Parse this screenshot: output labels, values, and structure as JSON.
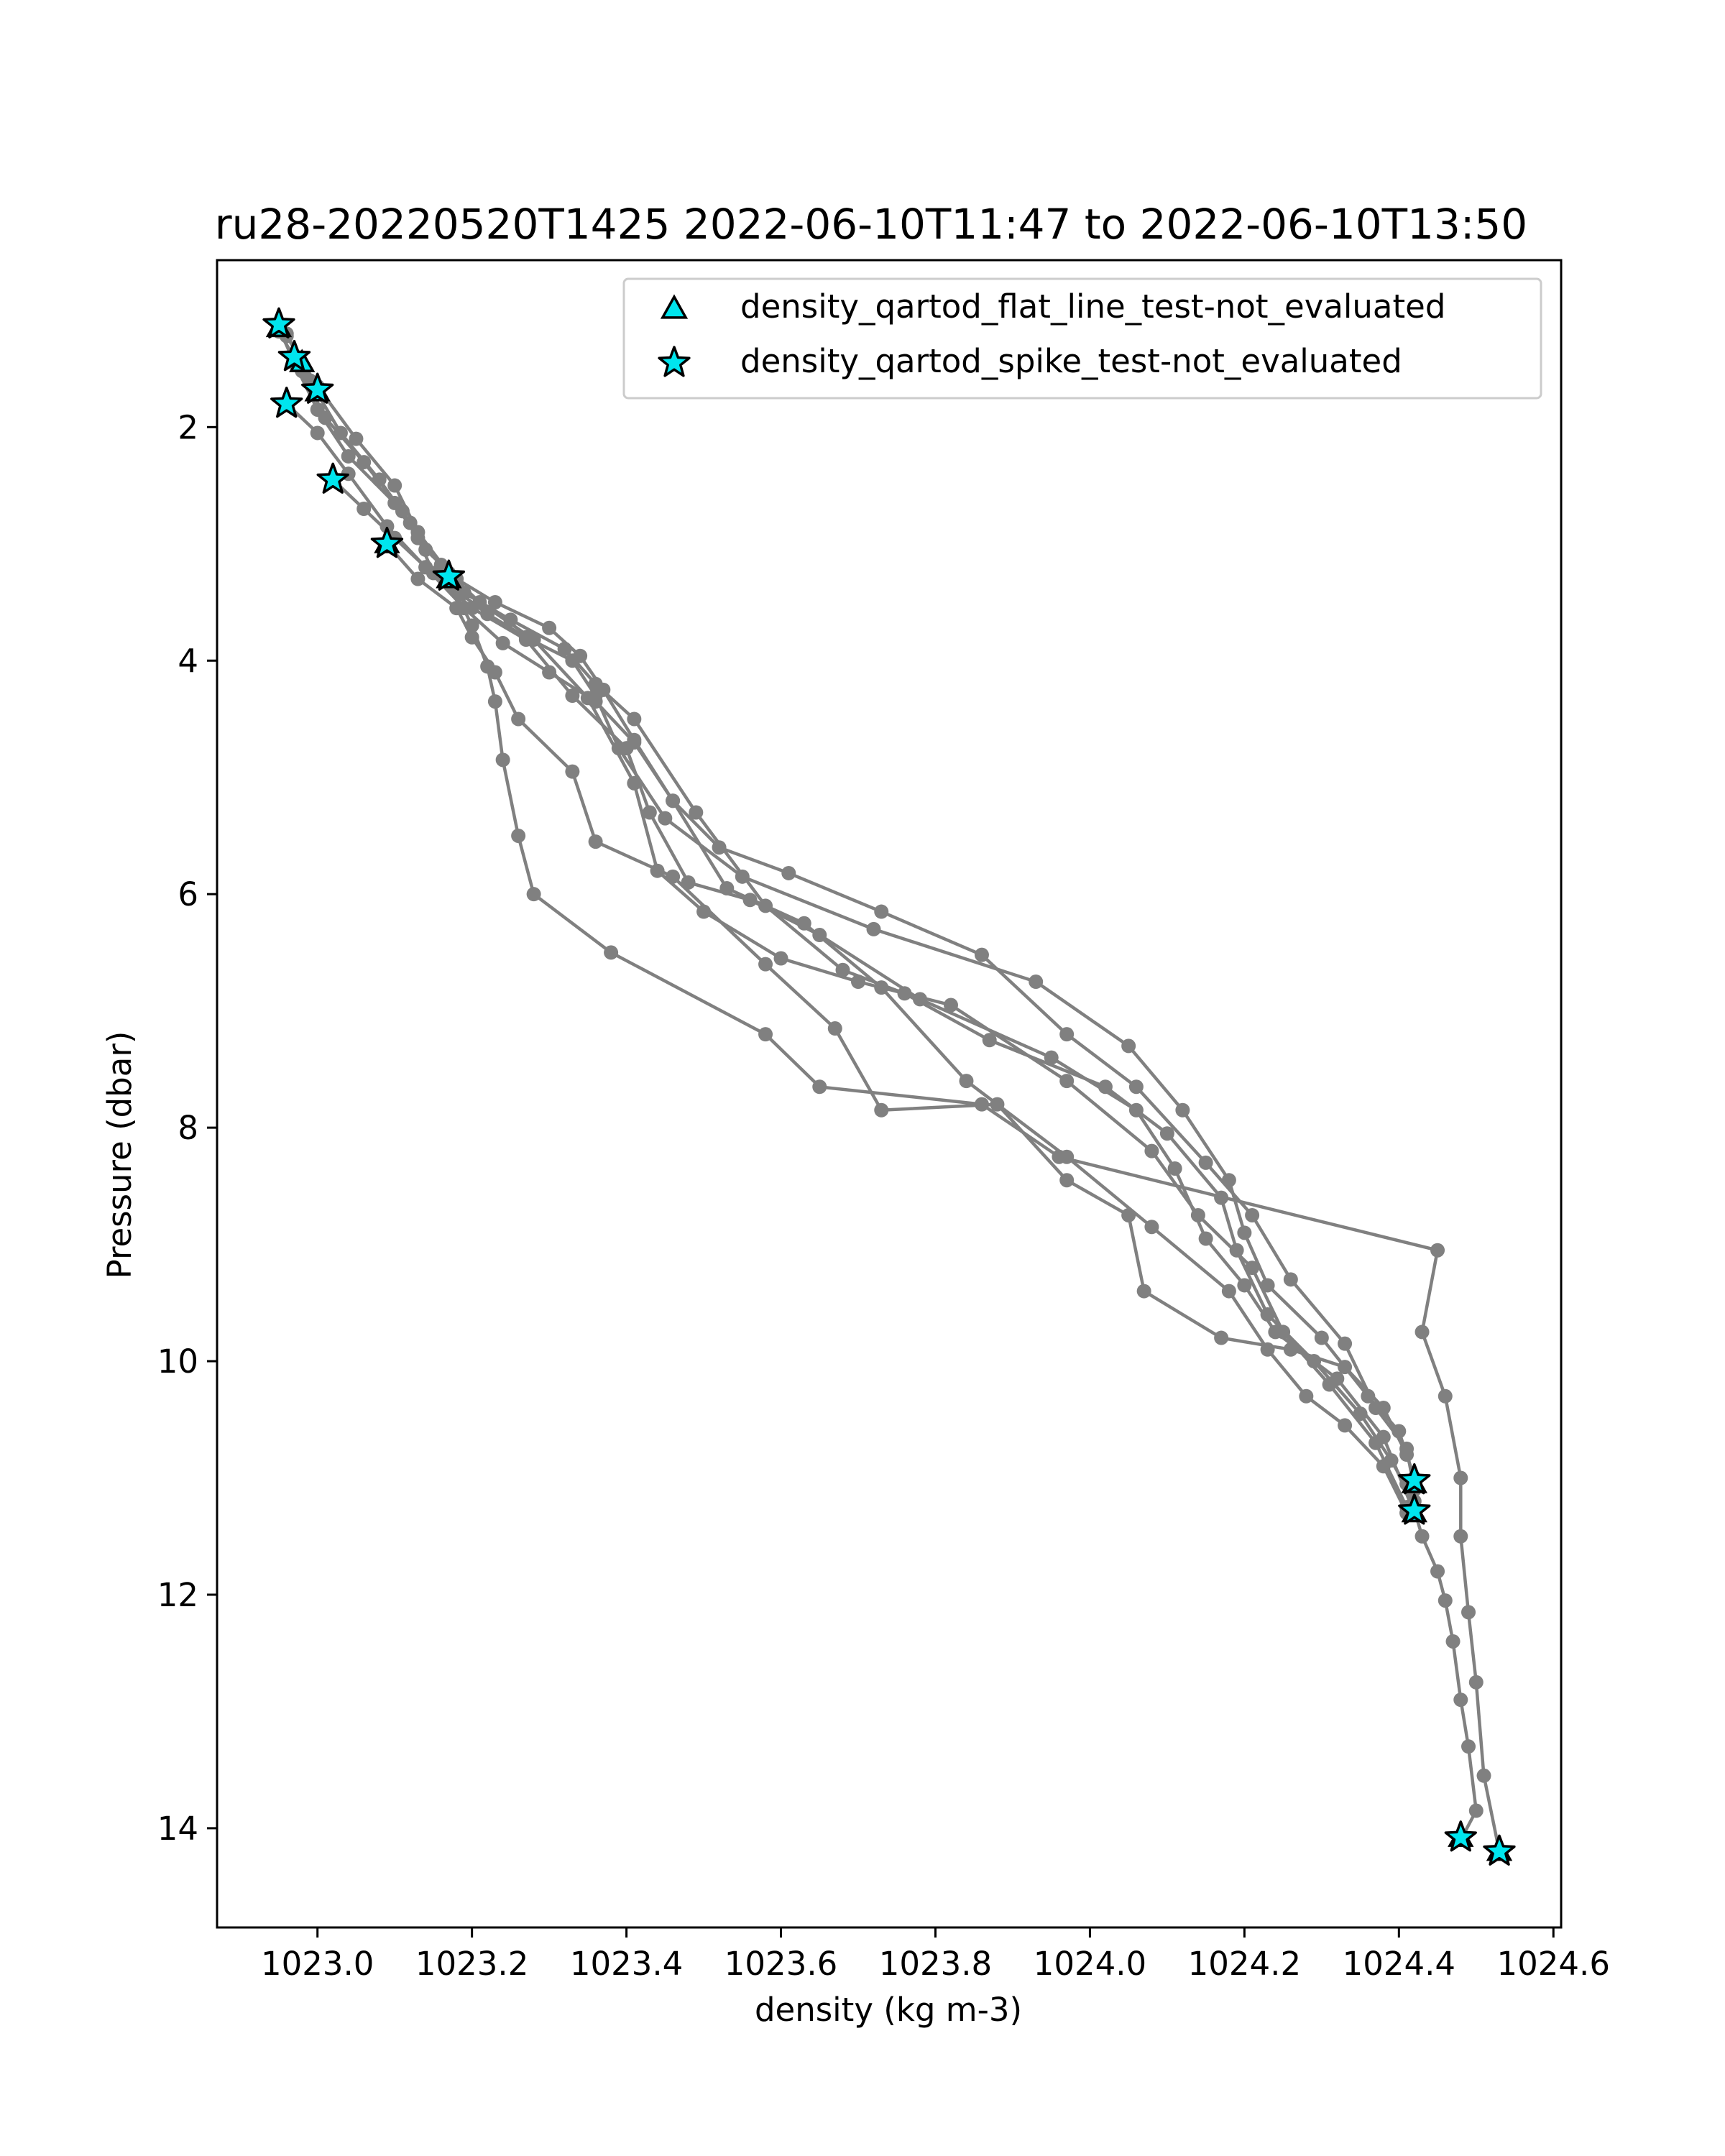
{
  "chart_data": {
    "type": "scatter",
    "title": "ru28-20220520T1425 2022-06-10T11:47 to 2022-06-10T13:50",
    "xlabel": "density (kg m-3)",
    "ylabel": "Pressure (dbar)",
    "xlim": [
      1022.87,
      1024.61
    ],
    "ylim": [
      14.85,
      0.57
    ],
    "y_inverted": true,
    "x_ticks": [
      1023.0,
      1023.2,
      1023.4,
      1023.6,
      1023.8,
      1024.0,
      1024.2,
      1024.4,
      1024.6
    ],
    "x_tick_labels": [
      "1023.0",
      "1023.2",
      "1023.4",
      "1023.6",
      "1023.8",
      "1024.0",
      "1024.2",
      "1024.4",
      "1024.6"
    ],
    "y_ticks": [
      2,
      4,
      6,
      8,
      10,
      12,
      14
    ],
    "y_tick_labels": [
      "2",
      "4",
      "6",
      "8",
      "10",
      "12",
      "14"
    ],
    "grid": false,
    "legend_position": "upper-right",
    "line_color": "#808080",
    "marker_color": "#00e5ee",
    "profiles": [
      {
        "density": [
          1022.95,
          1022.97,
          1023.0,
          1023.04,
          1023.1,
          1023.13,
          1023.15,
          1023.18,
          1023.22,
          1023.27,
          1023.33,
          1023.36,
          1023.39,
          1023.45,
          1023.55,
          1023.72,
          1023.93,
          1024.05,
          1024.12,
          1024.18,
          1024.2,
          1024.23,
          1024.3,
          1024.36,
          1024.4,
          1024.42
        ],
        "pressure": [
          1.15,
          1.45,
          1.85,
          2.25,
          2.65,
          2.95,
          3.25,
          3.4,
          3.6,
          3.8,
          4.0,
          4.3,
          4.75,
          5.35,
          5.85,
          6.3,
          6.75,
          7.3,
          7.85,
          8.45,
          8.9,
          9.35,
          9.8,
          10.3,
          10.6,
          11.0
        ]
      },
      {
        "density": [
          1022.95,
          1022.98,
          1023.01,
          1023.06,
          1023.11,
          1023.14,
          1023.18,
          1023.23,
          1023.3,
          1023.34,
          1023.37,
          1023.41,
          1023.46,
          1023.52,
          1023.61,
          1023.73,
          1023.86,
          1023.97,
          1024.06,
          1024.15,
          1024.21,
          1024.26,
          1024.33,
          1024.37,
          1024.41,
          1024.42
        ],
        "pressure": [
          1.18,
          1.52,
          1.92,
          2.3,
          2.72,
          3.05,
          3.3,
          3.5,
          3.72,
          3.96,
          4.25,
          4.68,
          5.2,
          5.6,
          5.82,
          6.15,
          6.52,
          7.2,
          7.65,
          8.3,
          8.75,
          9.3,
          9.85,
          10.4,
          10.75,
          11.1
        ]
      },
      {
        "density": [
          1022.96,
          1022.99,
          1023.03,
          1023.08,
          1023.12,
          1023.16,
          1023.19,
          1023.25,
          1023.32,
          1023.36,
          1023.41,
          1023.49,
          1023.58,
          1023.68,
          1023.76,
          1023.87,
          1024.02,
          1024.1,
          1024.17,
          1024.19,
          1024.23,
          1024.29,
          1024.35,
          1024.39,
          1024.42
        ],
        "pressure": [
          1.2,
          1.6,
          2.05,
          2.45,
          2.82,
          3.18,
          3.42,
          3.65,
          3.9,
          4.2,
          4.5,
          5.3,
          6.1,
          6.65,
          6.85,
          7.25,
          7.65,
          8.05,
          8.6,
          9.05,
          9.6,
          10.0,
          10.45,
          10.85,
          11.2
        ]
      },
      {
        "density": [
          1022.96,
          1023.0,
          1023.05,
          1023.1,
          1023.13,
          1023.17,
          1023.21,
          1023.28,
          1023.35,
          1023.41,
          1023.44,
          1023.5,
          1023.6,
          1023.7,
          1023.82,
          1023.97,
          1024.08,
          1024.14,
          1024.21,
          1024.25,
          1024.31,
          1024.37,
          1024.41
        ],
        "pressure": [
          1.22,
          1.65,
          2.1,
          2.5,
          2.9,
          3.25,
          3.5,
          3.82,
          4.32,
          5.05,
          5.8,
          6.15,
          6.55,
          6.75,
          6.95,
          7.6,
          8.2,
          8.75,
          9.2,
          9.75,
          10.2,
          10.7,
          11.25
        ]
      },
      {
        "density": [
          1022.96,
          1023.0,
          1023.04,
          1023.09,
          1023.14,
          1023.2,
          1023.27,
          1023.33,
          1023.4,
          1023.43,
          1023.48,
          1023.56,
          1023.65,
          1023.78,
          1023.95,
          1024.06,
          1024.11,
          1024.15,
          1024.2,
          1024.24,
          1024.32,
          1024.38,
          1024.42
        ],
        "pressure": [
          1.8,
          2.05,
          2.4,
          2.85,
          3.2,
          3.55,
          3.82,
          4.3,
          4.75,
          5.3,
          5.9,
          6.05,
          6.35,
          6.9,
          7.4,
          7.85,
          8.35,
          8.95,
          9.35,
          9.75,
          10.15,
          10.65,
          11.3
        ]
      },
      {
        "density": [
          1023.02,
          1023.06,
          1023.1,
          1023.14,
          1023.19,
          1023.24,
          1023.3,
          1023.36,
          1023.41,
          1023.46,
          1023.53,
          1023.63,
          1023.73,
          1023.84,
          1023.97,
          1024.08,
          1024.18,
          1024.23,
          1024.28,
          1024.33,
          1024.38,
          1024.41
        ],
        "pressure": [
          2.45,
          2.7,
          2.95,
          3.2,
          3.55,
          3.85,
          4.1,
          4.35,
          4.7,
          5.2,
          5.95,
          6.25,
          6.8,
          7.6,
          8.25,
          8.85,
          9.4,
          9.9,
          10.3,
          10.55,
          10.9,
          11.3
        ]
      },
      {
        "density": [
          1023.09,
          1023.13,
          1023.18,
          1023.2,
          1023.23,
          1023.26,
          1023.33,
          1023.36,
          1023.46,
          1023.58,
          1023.67,
          1023.73,
          1023.88,
          1023.97,
          1024.05,
          1024.07,
          1024.17,
          1024.26,
          1024.33,
          1024.38,
          1024.41
        ],
        "pressure": [
          3.0,
          3.3,
          3.55,
          3.8,
          4.1,
          4.5,
          4.95,
          5.55,
          5.85,
          6.6,
          7.15,
          7.85,
          7.8,
          8.45,
          8.75,
          9.4,
          9.8,
          9.9,
          10.05,
          10.4,
          10.8
        ]
      },
      {
        "density": [
          1023.17,
          1023.2,
          1023.22,
          1023.23,
          1023.24,
          1023.26,
          1023.28,
          1023.38,
          1023.58,
          1023.65,
          1023.86,
          1023.96,
          1024.45,
          1024.43,
          1024.46,
          1024.48,
          1024.48,
          1024.49,
          1024.5,
          1024.51,
          1024.53
        ],
        "pressure": [
          3.3,
          3.7,
          4.05,
          4.35,
          4.85,
          5.5,
          6.0,
          6.5,
          7.2,
          7.65,
          7.8,
          8.25,
          9.05,
          9.75,
          10.3,
          11.0,
          11.5,
          12.15,
          12.75,
          13.55,
          14.2
        ]
      },
      {
        "density": [
          1024.41,
          1024.43,
          1024.45,
          1024.46,
          1024.47,
          1024.48,
          1024.49,
          1024.5,
          1024.48
        ],
        "pressure": [
          11.05,
          11.5,
          11.8,
          12.05,
          12.4,
          12.9,
          13.3,
          13.85,
          14.1
        ]
      }
    ],
    "series": [
      {
        "name": "density_qartod_flat_line_test-not_evaluated",
        "marker": "triangle",
        "points": [
          [
            1022.95,
            1.15
          ],
          [
            1022.98,
            1.45
          ],
          [
            1023.0,
            1.7
          ],
          [
            1023.09,
            3.0
          ],
          [
            1023.17,
            3.3
          ],
          [
            1024.42,
            11.05
          ],
          [
            1024.42,
            11.3
          ],
          [
            1024.48,
            14.08
          ],
          [
            1024.53,
            14.2
          ]
        ]
      },
      {
        "name": "density_qartod_spike_test-not_evaluated",
        "marker": "star",
        "points": [
          [
            1022.95,
            1.12
          ],
          [
            1022.97,
            1.4
          ],
          [
            1023.0,
            1.68
          ],
          [
            1022.96,
            1.8
          ],
          [
            1023.02,
            2.45
          ],
          [
            1023.09,
            3.0
          ],
          [
            1023.17,
            3.28
          ],
          [
            1024.42,
            11.02
          ],
          [
            1024.42,
            11.28
          ],
          [
            1024.48,
            14.08
          ],
          [
            1024.53,
            14.2
          ]
        ]
      }
    ]
  }
}
